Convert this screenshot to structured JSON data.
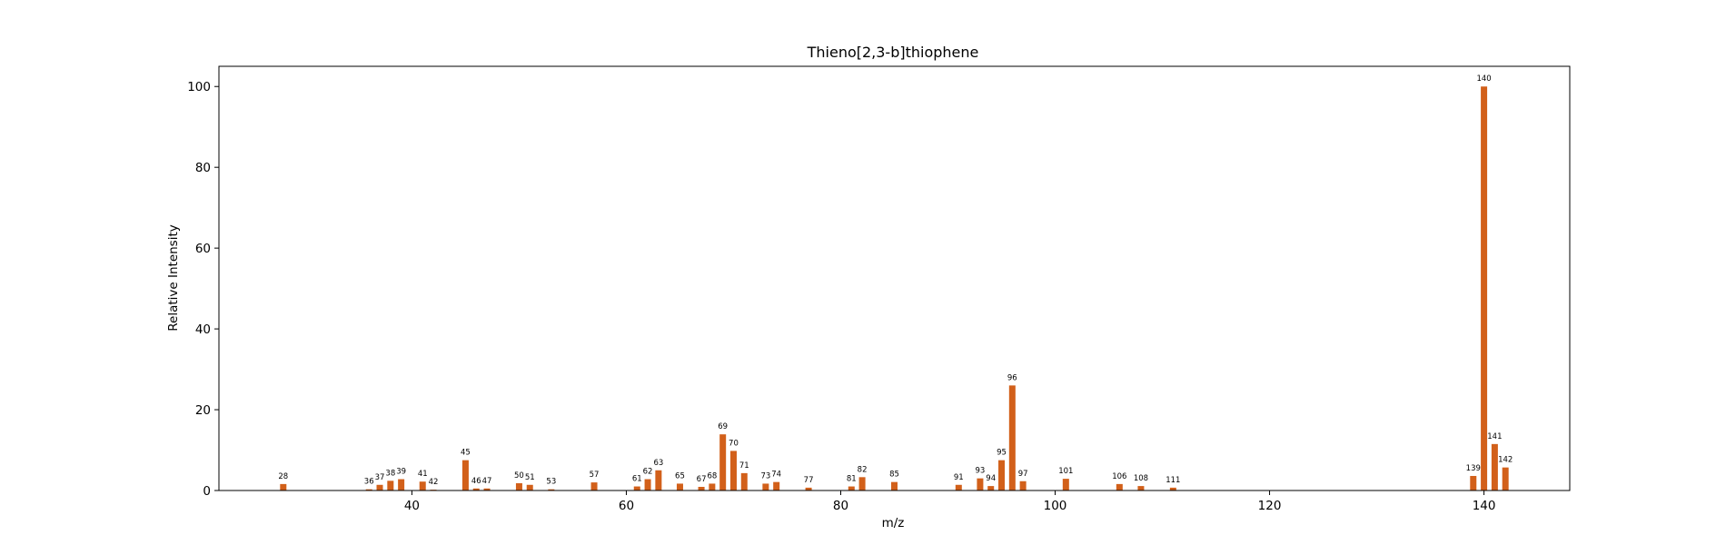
{
  "chart_data": {
    "type": "bar",
    "title": "Thieno[2,3-b]thiophene",
    "xlabel": "m/z",
    "ylabel": "Relative Intensity",
    "xlim": [
      22,
      148
    ],
    "ylim": [
      0,
      105
    ],
    "xticks": [
      40,
      60,
      80,
      100,
      120,
      140
    ],
    "yticks": [
      0,
      20,
      40,
      60,
      80,
      100
    ],
    "bar_color": "#d2601a",
    "grid": false,
    "legend": "none",
    "x": [
      28,
      36,
      37,
      38,
      39,
      41,
      42,
      45,
      46,
      47,
      50,
      51,
      53,
      57,
      61,
      62,
      63,
      65,
      67,
      68,
      69,
      70,
      71,
      73,
      74,
      77,
      81,
      82,
      85,
      91,
      93,
      94,
      95,
      96,
      97,
      101,
      106,
      108,
      111,
      139,
      140,
      141,
      142
    ],
    "values": [
      1.6,
      0.3,
      1.4,
      2.4,
      2.8,
      2.2,
      0.2,
      7.5,
      0.5,
      0.5,
      1.8,
      1.4,
      0.3,
      2.0,
      1.0,
      2.8,
      5.0,
      1.7,
      0.9,
      1.7,
      13.9,
      9.8,
      4.3,
      1.7,
      2.1,
      0.7,
      1.0,
      3.3,
      2.1,
      1.4,
      3.0,
      1.1,
      7.5,
      26.0,
      2.3,
      2.9,
      1.6,
      1.1,
      0.7,
      3.6,
      100.0,
      11.5,
      5.7
    ],
    "labels": [
      "28",
      "36",
      "37",
      "38",
      "39",
      "41",
      "42",
      "45",
      "46",
      "47",
      "50",
      "51",
      "53",
      "57",
      "61",
      "62",
      "63",
      "65",
      "67",
      "68",
      "69",
      "70",
      "71",
      "73",
      "74",
      "77",
      "81",
      "82",
      "85",
      "91",
      "93",
      "94",
      "95",
      "96",
      "97",
      "101",
      "106",
      "108",
      "111",
      "139",
      "140",
      "141",
      "142"
    ]
  }
}
